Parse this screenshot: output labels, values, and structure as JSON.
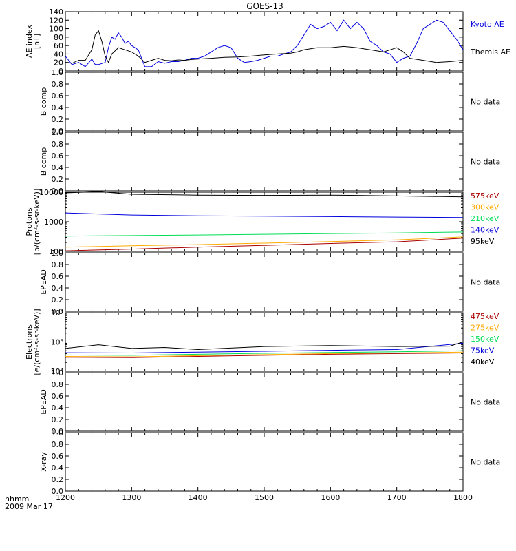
{
  "title": "GOES-13",
  "footer": {
    "time_label": "hhmm",
    "date": "2009 Mar 17"
  },
  "x_ticks": [
    "1200",
    "1300",
    "1400",
    "1500",
    "1600",
    "1700",
    "1800"
  ],
  "no_data_text": "No data",
  "colors": {
    "black": "#000000",
    "blue": "#0000dd",
    "green": "#00dd55",
    "orange": "#ffaa00",
    "darkred": "#aa0000"
  },
  "chart_data": [
    {
      "type": "line",
      "ylabel": [
        "AE index",
        "[nT]"
      ],
      "yscale": "linear",
      "ylim": [
        0,
        140
      ],
      "yticks": [
        0,
        20,
        40,
        60,
        80,
        100,
        120,
        140
      ],
      "xlim": [
        1200,
        1800
      ],
      "series": [
        {
          "name": "Kyoto AE",
          "color": "#0000dd",
          "x": [
            1200,
            1210,
            1220,
            1230,
            1240,
            1245,
            1250,
            1260,
            1265,
            1270,
            1275,
            1280,
            1285,
            1290,
            1295,
            1300,
            1310,
            1320,
            1330,
            1340,
            1350,
            1360,
            1370,
            1380,
            1390,
            1400,
            1410,
            1420,
            1430,
            1440,
            1450,
            1460,
            1470,
            1480,
            1490,
            1500,
            1510,
            1520,
            1530,
            1540,
            1550,
            1560,
            1570,
            1580,
            1590,
            1600,
            1610,
            1620,
            1630,
            1640,
            1650,
            1660,
            1670,
            1680,
            1690,
            1700,
            1710,
            1720,
            1730,
            1740,
            1750,
            1760,
            1770,
            1780,
            1790,
            1800
          ],
          "y": [
            35,
            15,
            20,
            10,
            28,
            15,
            15,
            20,
            55,
            80,
            75,
            90,
            80,
            65,
            70,
            60,
            50,
            10,
            10,
            22,
            18,
            22,
            22,
            25,
            30,
            30,
            35,
            45,
            55,
            60,
            55,
            30,
            20,
            22,
            25,
            30,
            35,
            35,
            40,
            45,
            60,
            85,
            110,
            100,
            105,
            115,
            95,
            120,
            100,
            115,
            100,
            70,
            60,
            45,
            40,
            20,
            30,
            35,
            65,
            100,
            110,
            120,
            115,
            95,
            75,
            50
          ]
        },
        {
          "name": "Themis AE",
          "color": "#000000",
          "x": [
            1200,
            1210,
            1220,
            1230,
            1240,
            1245,
            1250,
            1255,
            1260,
            1265,
            1270,
            1280,
            1290,
            1300,
            1310,
            1320,
            1330,
            1340,
            1350,
            1360,
            1370,
            1380,
            1390,
            1400,
            1420,
            1440,
            1460,
            1480,
            1500,
            1520,
            1540,
            1550,
            1560,
            1580,
            1600,
            1620,
            1640,
            1660,
            1680,
            1690,
            1700,
            1710,
            1720,
            1740,
            1760,
            1780,
            1800
          ],
          "y": [
            20,
            18,
            25,
            25,
            50,
            85,
            95,
            70,
            35,
            20,
            40,
            55,
            50,
            45,
            35,
            20,
            25,
            30,
            25,
            24,
            26,
            25,
            27,
            28,
            30,
            32,
            33,
            35,
            38,
            40,
            42,
            45,
            50,
            55,
            55,
            58,
            55,
            50,
            45,
            50,
            55,
            45,
            30,
            25,
            20,
            22,
            25
          ]
        }
      ]
    },
    {
      "type": "line",
      "ylabel": [
        "B comp"
      ],
      "ylim": [
        0,
        1
      ],
      "yticks": [
        0.0,
        0.2,
        0.4,
        0.6,
        0.8,
        1.0
      ],
      "no_data": true
    },
    {
      "type": "line",
      "ylabel": [
        "B comp"
      ],
      "ylim": [
        0,
        1
      ],
      "yticks": [
        0.0,
        0.2,
        0.4,
        0.6,
        0.8,
        1.0
      ],
      "no_data": true
    },
    {
      "type": "line",
      "ylabel": [
        "Protons",
        "[p/(cm²-s-sr-keV)]"
      ],
      "yscale": "log",
      "ylim": [
        100,
        10000
      ],
      "yticks": [
        100,
        1000,
        10000
      ],
      "xlim": [
        1200,
        1800
      ],
      "series": [
        {
          "name": "575keV",
          "color": "#aa0000",
          "x": [
            1200,
            1300,
            1400,
            1500,
            1600,
            1700,
            1800
          ],
          "y": [
            105,
            120,
            140,
            160,
            185,
            210,
            280
          ]
        },
        {
          "name": "300keV",
          "color": "#ffaa00",
          "x": [
            1200,
            1300,
            1400,
            1500,
            1600,
            1700,
            1800
          ],
          "y": [
            140,
            155,
            170,
            190,
            215,
            245,
            310
          ]
        },
        {
          "name": "210keV",
          "color": "#00dd55",
          "x": [
            1200,
            1300,
            1400,
            1500,
            1600,
            1700,
            1800
          ],
          "y": [
            330,
            345,
            360,
            380,
            400,
            420,
            450
          ]
        },
        {
          "name": "140keV",
          "color": "#0000dd",
          "x": [
            1200,
            1300,
            1400,
            1500,
            1600,
            1700,
            1800
          ],
          "y": [
            2000,
            1700,
            1600,
            1550,
            1500,
            1450,
            1400
          ]
        },
        {
          "name": "95keV",
          "color": "#000000",
          "x": [
            1200,
            1250,
            1300,
            1400,
            1500,
            1600,
            1700,
            1800
          ],
          "y": [
            9500,
            10500,
            8500,
            8000,
            7800,
            8000,
            7500,
            7000
          ]
        }
      ]
    },
    {
      "type": "line",
      "ylabel": [
        "EPEAD"
      ],
      "ylim": [
        0,
        1
      ],
      "yticks": [
        0.0,
        0.2,
        0.4,
        0.6,
        0.8,
        1.0
      ],
      "no_data": true
    },
    {
      "type": "line",
      "ylabel": [
        "Electrons",
        "[e/(cm²-s-sr-keV)]"
      ],
      "yscale": "log",
      "ylim": [
        10000,
        1000000
      ],
      "yticks": [
        10000,
        100000,
        1000000
      ],
      "ytick_labels": [
        "10⁴",
        "10⁵",
        "10⁶"
      ],
      "xlim": [
        1200,
        1800
      ],
      "series": [
        {
          "name": "475keV",
          "color": "#aa0000",
          "x": [
            1200,
            1300,
            1400,
            1500,
            1600,
            1700,
            1800
          ],
          "y": [
            30000,
            29000,
            32000,
            35000,
            38000,
            40000,
            42000
          ]
        },
        {
          "name": "275keV",
          "color": "#ffaa00",
          "x": [
            1200,
            1300,
            1400,
            1500,
            1600,
            1700,
            1800
          ],
          "y": [
            32000,
            31000,
            34000,
            37000,
            40000,
            42000,
            45000
          ]
        },
        {
          "name": "150keV",
          "color": "#00dd55",
          "x": [
            1200,
            1300,
            1400,
            1500,
            1600,
            1700,
            1800
          ],
          "y": [
            36000,
            35000,
            38000,
            41000,
            44000,
            46000,
            50000
          ]
        },
        {
          "name": "75keV",
          "color": "#0000dd",
          "x": [
            1200,
            1300,
            1400,
            1500,
            1600,
            1700,
            1800
          ],
          "y": [
            43000,
            42000,
            45000,
            48000,
            52000,
            55000,
            90000
          ]
        },
        {
          "name": "40keV",
          "color": "#000000",
          "x": [
            1200,
            1250,
            1300,
            1350,
            1400,
            1500,
            1600,
            1700,
            1780,
            1800
          ],
          "y": [
            60000,
            80000,
            60000,
            65000,
            55000,
            70000,
            75000,
            70000,
            72000,
            100000
          ]
        }
      ]
    },
    {
      "type": "line",
      "ylabel": [
        "EPEAD"
      ],
      "ylim": [
        0,
        1
      ],
      "yticks": [
        0.0,
        0.2,
        0.4,
        0.6,
        0.8,
        1.0
      ],
      "no_data": true
    },
    {
      "type": "line",
      "ylabel": [
        "X-ray"
      ],
      "ylim": [
        0,
        1
      ],
      "yticks": [
        0.0,
        0.2,
        0.4,
        0.6,
        0.8,
        1.0
      ],
      "no_data": true
    }
  ]
}
